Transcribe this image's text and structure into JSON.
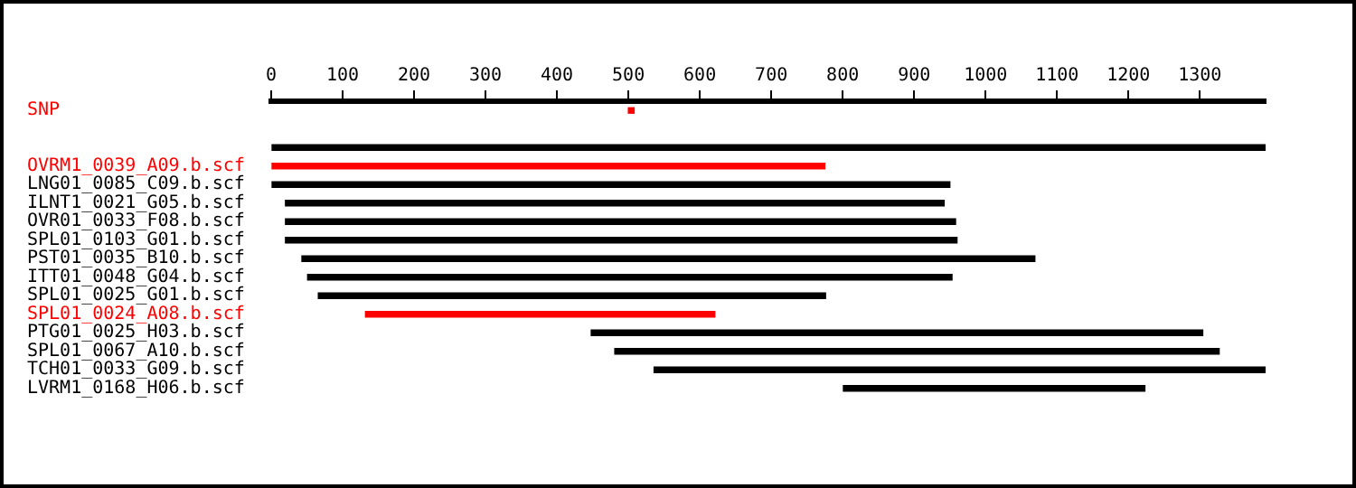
{
  "chart_data": {
    "type": "bar",
    "orientation": "horizontal",
    "categories": [
      "SNP",
      null,
      null,
      "OVRM1_0039_A09.b.scf",
      "LNG01_0085_C09.b.scf",
      "ILNT1_0021_G05.b.scf",
      "OVR01_0033_F08.b.scf",
      "SPL01_0103_G01.b.scf",
      "PST01_0035_B10.b.scf",
      "ITT01_0048_G04.b.scf",
      "SPL01_0025_G01.b.scf",
      "SPL01_0024_A08.b.scf",
      "PTG01_0025_H03.b.scf",
      "SPL01_0067_A10.b.scf",
      "TCH01_0033_G09.b.scf",
      "LVRM1_0168_H06.b.scf"
    ],
    "base": [
      500,
      null,
      0,
      0,
      0,
      20,
      20,
      20,
      43,
      51,
      66,
      132,
      448,
      481,
      536,
      801
    ],
    "values": [
      8,
      null,
      1392,
      775,
      950,
      922,
      938,
      940,
      1026,
      902,
      710,
      489,
      856,
      846,
      856,
      422
    ],
    "colors": [
      "#ff0000",
      "#000000",
      "#000000",
      "#ff0000",
      "#000000",
      "#000000",
      "#000000",
      "#000000",
      "#000000",
      "#000000",
      "#000000",
      "#ff0000",
      "#000000",
      "#000000",
      "#000000",
      "#000000"
    ],
    "xlim": [
      0,
      1392
    ],
    "xticks": [
      0,
      100,
      200,
      300,
      400,
      500,
      600,
      700,
      800,
      900,
      1000,
      1100,
      1200,
      1300
    ]
  }
}
